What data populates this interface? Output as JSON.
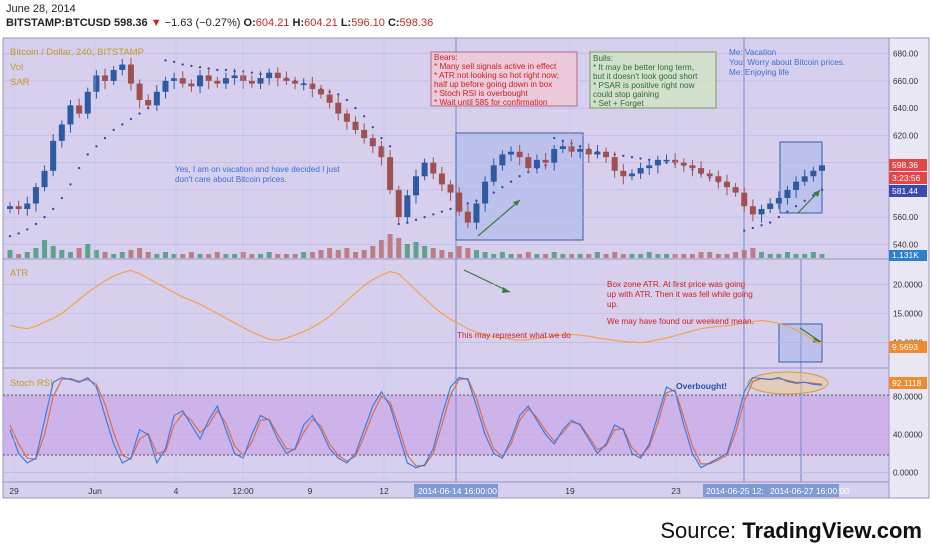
{
  "header": {
    "date": "June 28, 2014",
    "symbol": "BITSTAMP:BTCUSD",
    "last": "598.36",
    "arrow": "▼",
    "change": "−1.63 (−0.27%)",
    "o_label": "O:",
    "o": "604.21",
    "h_label": "H:",
    "h": "604.21",
    "l_label": "L:",
    "l": "596.10",
    "c_label": "C:",
    "c": "598.36"
  },
  "legend": {
    "title": "Bitcoin / Dollar, 240, BITSTAMP",
    "vol": "Vol",
    "sar": "SAR"
  },
  "annotations": {
    "bears": [
      "Bears:",
      "* Many sell signals active in effect",
      "* ATR not looking so hot right now;",
      "half up before going down in box",
      "* Stoch RSI is overbought",
      "* Wait until 585 for confirmation"
    ],
    "bulls": [
      "Bulls:",
      "* It may be better long term,",
      "but it doesn't look good short",
      "* PSAR is positive right now",
      "could stop gaining",
      "* Set + Forget"
    ],
    "me": [
      "Me: Vacation",
      "You: Worry about Bitcoin prices.",
      "Me: Enjoying life"
    ],
    "vacation": [
      "Yes, I am on vacation and have decided I just",
      "don't care about Bitcoin prices."
    ],
    "atr_note": "This may represent what we do",
    "box_atr": [
      "Box zone ATR. At first price was going",
      "up with ATR. Then it was fell while going",
      "up."
    ],
    "weekend": "We may have found our weekend mean.",
    "overbought": "Overbought!"
  },
  "price_tags": {
    "last": "598.36",
    "timer": "3:23:56",
    "sar": "581.44",
    "vol": "1.131K",
    "atr": "9.5693",
    "stoch": "92.1118"
  },
  "time_axis": {
    "labels": [
      "29",
      "Jun",
      "4",
      "12:00",
      "9",
      "12",
      "19",
      "23"
    ],
    "highlights": [
      "2014-06-14 16:00:00",
      "2014-06-25 12:",
      "2014-06-27 16:00:00"
    ]
  },
  "source": {
    "prefix": "Source: ",
    "brand": "TradingView.com"
  },
  "colors": {
    "bg": "#d6d0ee",
    "up": "#2d5aa0",
    "down": "#a05050",
    "atr": "#f6a14a",
    "stoch_k": "#3b7de0",
    "stoch_d": "#e06a4a",
    "stoch_band": "#c89aea",
    "sar": "#3c4ab0"
  },
  "chart_data": [
    {
      "type": "candlestick",
      "title": "Bitcoin / Dollar, 240, BITSTAMP",
      "ylim": [
        530,
        690
      ],
      "y_ticks": [
        540,
        560,
        580,
        600,
        620,
        640,
        660,
        680
      ],
      "y_tick_labels": [
        "540.00",
        "560.00",
        "580.00",
        "600.00",
        "620.00",
        "640.00",
        "660.00",
        "680.00"
      ],
      "close": [
        568,
        566,
        570,
        582,
        594,
        616,
        628,
        642,
        636,
        652,
        664,
        660,
        668,
        672,
        658,
        646,
        642,
        652,
        660,
        662,
        658,
        656,
        664,
        660,
        658,
        662,
        664,
        660,
        658,
        662,
        666,
        662,
        660,
        658,
        658,
        654,
        650,
        644,
        636,
        630,
        624,
        618,
        612,
        604,
        580,
        560,
        576,
        590,
        600,
        592,
        584,
        578,
        564,
        556,
        570,
        586,
        598,
        606,
        608,
        604,
        596,
        602,
        600,
        610,
        612,
        608,
        610,
        606,
        608,
        604,
        594,
        590,
        592,
        596,
        598,
        602,
        602,
        600,
        598,
        596,
        592,
        590,
        586,
        582,
        578,
        568,
        562,
        566,
        570,
        574,
        580,
        586,
        590,
        594,
        598
      ],
      "series": [
        {
          "name": "Vol",
          "values": [
            4,
            2,
            3,
            5,
            9,
            6,
            4,
            3,
            5,
            7,
            4,
            3,
            2,
            3,
            4,
            5,
            3,
            2,
            3,
            2,
            2,
            3,
            2,
            2,
            3,
            2,
            2,
            3,
            2,
            2,
            3,
            2,
            2,
            2,
            3,
            3,
            4,
            5,
            4,
            5,
            3,
            4,
            6,
            9,
            12,
            10,
            7,
            8,
            6,
            5,
            4,
            3,
            6,
            5,
            4,
            3,
            2,
            3,
            2,
            2,
            3,
            2,
            2,
            3,
            2,
            2,
            2,
            2,
            3,
            2,
            3,
            2,
            2,
            2,
            3,
            2,
            2,
            2,
            2,
            2,
            3,
            3,
            2,
            2,
            3,
            4,
            5,
            3,
            2,
            2,
            3,
            2,
            2,
            3,
            2
          ]
        },
        {
          "name": "SAR",
          "values": [
            546,
            548,
            551,
            555,
            560,
            566,
            574,
            584,
            596,
            606,
            612,
            618,
            624,
            628,
            632,
            636,
            640,
            644,
            675,
            674,
            672,
            671,
            670,
            669,
            668,
            668,
            667,
            667,
            666,
            665,
            664,
            663,
            662,
            660,
            658,
            656,
            654,
            652,
            650,
            646,
            640,
            634,
            626,
            618,
            612,
            555,
            556,
            558,
            560,
            562,
            564,
            566,
            568,
            570,
            572,
            574,
            578,
            582,
            586,
            590,
            593,
            596,
            598,
            618,
            616,
            614,
            612,
            610,
            608,
            607,
            606,
            605,
            604,
            603,
            602,
            601,
            600,
            599,
            598,
            595,
            592,
            589,
            586,
            583,
            580,
            550,
            552,
            554,
            556,
            560,
            564,
            568,
            572,
            576,
            580
          ]
        }
      ]
    },
    {
      "type": "line",
      "title": "ATR",
      "ylim": [
        6,
        24
      ],
      "y_ticks": [
        10,
        15,
        20
      ],
      "y_tick_labels": [
        "10.0000",
        "15.0000",
        "20.0000"
      ],
      "series": [
        {
          "name": "ATR",
          "values": [
            13,
            12.6,
            12.4,
            12.8,
            13.5,
            14.2,
            15,
            16.2,
            17.4,
            18.6,
            19.6,
            20.6,
            21.4,
            22,
            22.4,
            21.8,
            21,
            20.2,
            19.4,
            18.6,
            17.8,
            17.2,
            16.6,
            15.8,
            15,
            14.2,
            13.4,
            12.6,
            11.8,
            11.2,
            10.6,
            10.4,
            10.8,
            11.3,
            11.9,
            12.6,
            13.5,
            14.5,
            15.8,
            17.2,
            18.5,
            19.8,
            20.8,
            21.6,
            22.2,
            21.8,
            20.4,
            19,
            17.6,
            16.2,
            15,
            14,
            13.2,
            12.4,
            11.8,
            11.4,
            11,
            10.8,
            10.6,
            10.4,
            10.5,
            10.7,
            10.9,
            11.2,
            11.3,
            11.4,
            11.3,
            11.1,
            10.8,
            10.6,
            10.4,
            10.2,
            10.1,
            10,
            10.2,
            10.5,
            10.8,
            11.2,
            11.6,
            12,
            12.4,
            12.6,
            12.8,
            12.9,
            13.1,
            13.4,
            13.6,
            13.8,
            13.6,
            13.3,
            12.8,
            12.2,
            11.4,
            10.5,
            9.57
          ]
        }
      ]
    },
    {
      "type": "line",
      "title": "Stoch RSI",
      "ylim": [
        -8,
        108
      ],
      "y_ticks": [
        0,
        40,
        80
      ],
      "y_tick_labels": [
        "0.0000",
        "40.0000",
        "80.0000"
      ],
      "bands": [
        20,
        80
      ],
      "series": [
        {
          "name": "K",
          "values": [
            45,
            20,
            10,
            15,
            55,
            95,
            100,
            98,
            95,
            100,
            90,
            60,
            30,
            10,
            15,
            45,
            40,
            10,
            25,
            60,
            65,
            50,
            35,
            55,
            70,
            45,
            20,
            15,
            40,
            60,
            55,
            35,
            20,
            25,
            50,
            60,
            45,
            25,
            15,
            10,
            20,
            45,
            70,
            85,
            70,
            40,
            10,
            5,
            8,
            25,
            60,
            90,
            100,
            98,
            70,
            40,
            20,
            15,
            35,
            60,
            70,
            55,
            40,
            30,
            45,
            55,
            50,
            35,
            20,
            30,
            50,
            45,
            20,
            15,
            30,
            60,
            90,
            85,
            50,
            20,
            5,
            10,
            15,
            20,
            50,
            85,
            100,
            99,
            98,
            100,
            96,
            94,
            95,
            93,
            92
          ]
        },
        {
          "name": "D",
          "values": [
            50,
            30,
            15,
            14,
            40,
            80,
            98,
            99,
            96,
            98,
            93,
            72,
            42,
            18,
            14,
            35,
            41,
            20,
            22,
            50,
            62,
            55,
            42,
            50,
            65,
            52,
            28,
            18,
            32,
            55,
            56,
            40,
            25,
            24,
            42,
            56,
            49,
            30,
            18,
            12,
            17,
            38,
            62,
            80,
            74,
            48,
            18,
            7,
            7,
            20,
            50,
            82,
            98,
            99,
            78,
            48,
            25,
            17,
            30,
            55,
            67,
            58,
            44,
            33,
            42,
            53,
            51,
            38,
            24,
            28,
            45,
            46,
            26,
            17,
            27,
            52,
            84,
            87,
            58,
            28,
            9,
            9,
            13,
            18,
            42,
            75,
            96,
            99,
            98,
            99,
            97,
            95,
            95,
            94,
            93
          ]
        }
      ]
    }
  ]
}
